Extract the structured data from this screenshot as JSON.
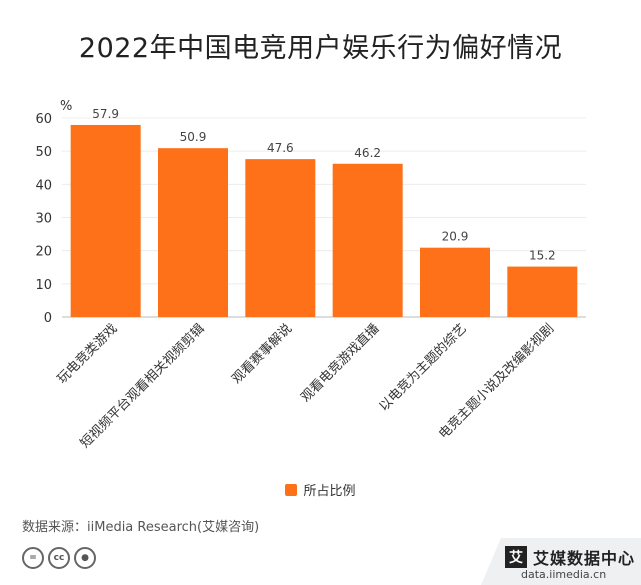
{
  "title": "2022年中国电竞用户娱乐行为偏好情况",
  "chart_data": {
    "type": "bar",
    "unit": "%",
    "categories": [
      "玩电竞类游戏",
      "短视频平台观看相关视频剪辑",
      "观看赛事解说",
      "观看电竞游戏直播",
      "以电竞为主题的综艺",
      "电竞主题小说及改编影视剧"
    ],
    "series": [
      {
        "name": "所占比例",
        "values": [
          57.9,
          50.9,
          47.6,
          46.2,
          20.9,
          15.2
        ]
      }
    ],
    "ylim": [
      0,
      60
    ],
    "yticks": [
      0,
      10,
      20,
      30,
      40,
      50,
      60
    ],
    "legend_position": "bottom",
    "grid": true,
    "color": "#fe7118"
  },
  "legend": {
    "label": "所占比例"
  },
  "source": "数据来源：iiMedia Research(艾媒咨询)",
  "brand": {
    "logo_char": "艾",
    "name": "艾媒数据中心",
    "url": "data.iimedia.cn"
  }
}
